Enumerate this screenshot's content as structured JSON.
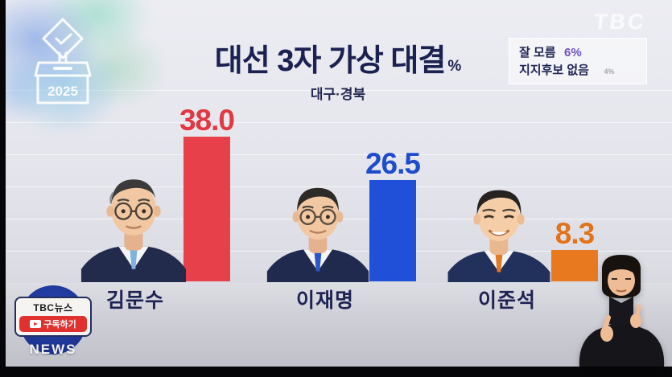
{
  "channel": {
    "watermark": "TBC",
    "news_vertical": "NEWS",
    "subscribe_badge": {
      "title": "TBC뉴스",
      "subscribe": "구독하기"
    }
  },
  "graphic": {
    "year": "2025",
    "title": "대선 3자 가상 대결",
    "unit": "%",
    "region": "대구·경북",
    "info_box": {
      "dont_know_label": "잘 모름",
      "dont_know_value": "6%",
      "no_candidate_label": "지지후보 없음",
      "no_candidate_value": "4%"
    }
  },
  "candidates": [
    {
      "name": "김문수",
      "value_label": "38.0",
      "color": "#e23843"
    },
    {
      "name": "이재명",
      "value_label": "26.5",
      "color": "#1f4ccc"
    },
    {
      "name": "이준석",
      "value_label": "8.3",
      "color": "#e0731d"
    }
  ],
  "chart_data": {
    "type": "bar",
    "title": "대선 3자 가상 대결",
    "subtitle": "대구·경북",
    "unit": "%",
    "categories": [
      "김문수",
      "이재명",
      "이준석"
    ],
    "values": [
      38.0,
      26.5,
      8.3
    ],
    "bar_colors": [
      "#e8404a",
      "#2050d8",
      "#e8791f"
    ],
    "value_label_colors": [
      "#e23843",
      "#1f4ccc",
      "#e0731d"
    ],
    "annotations": [
      "잘 모름 6%",
      "지지후보 없음 4%"
    ],
    "ylim": [
      0,
      42
    ],
    "grid": true,
    "legend": false
  }
}
